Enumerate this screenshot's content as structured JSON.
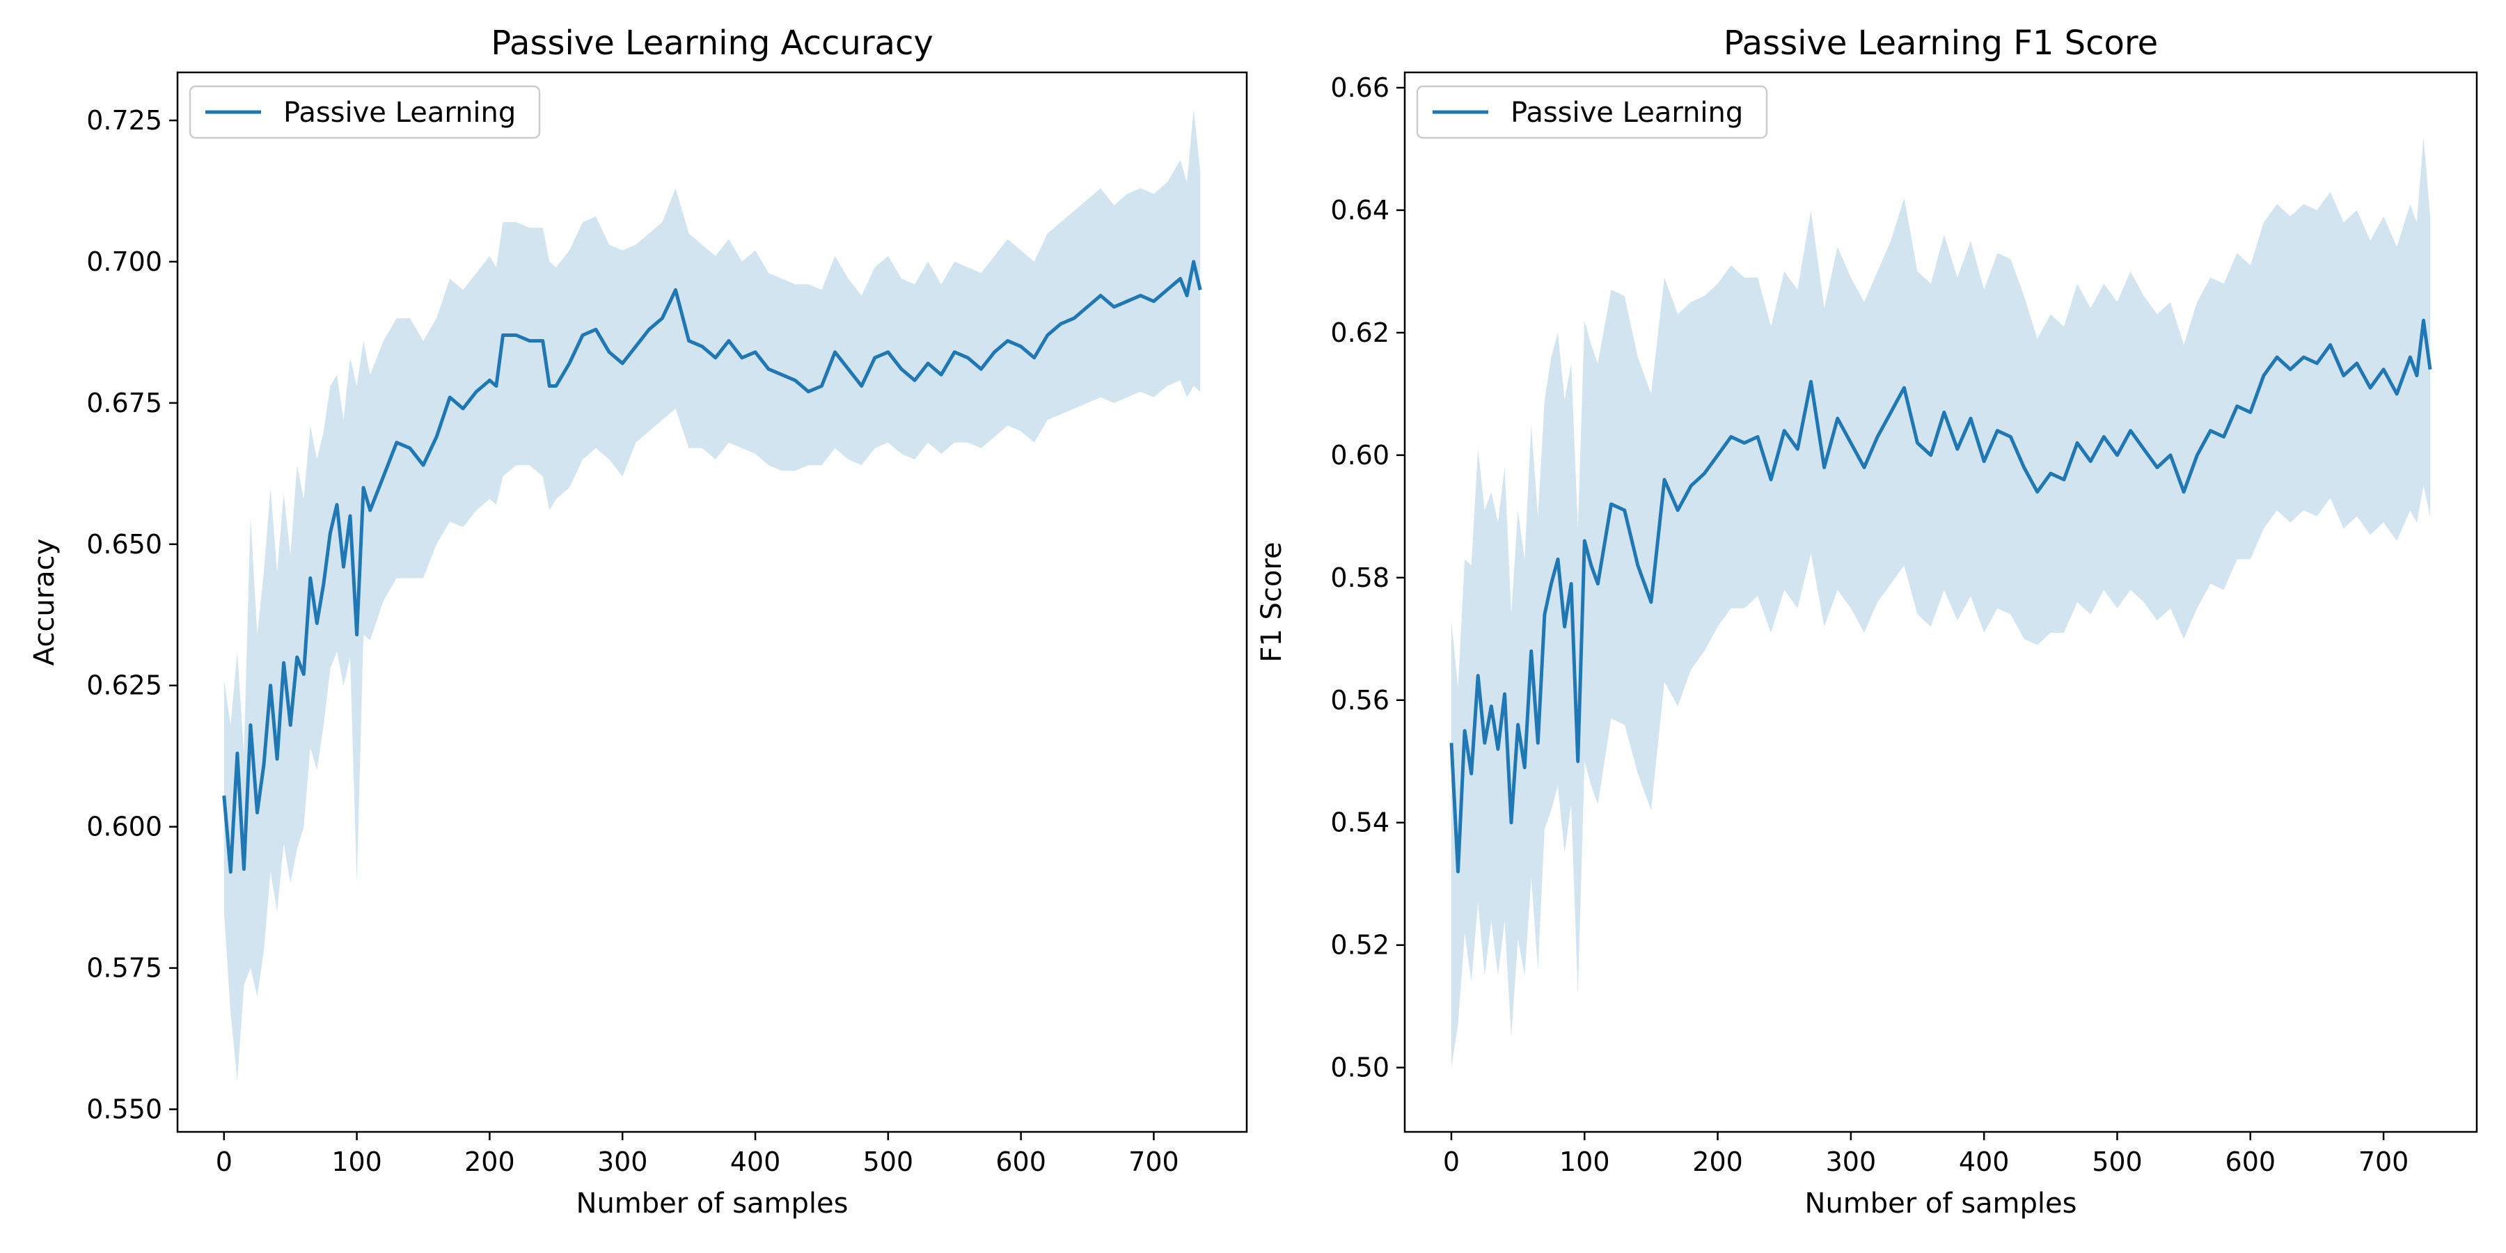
{
  "chart_data": [
    {
      "type": "line",
      "title": "Passive Learning Accuracy",
      "xlabel": "Number of samples",
      "ylabel": "Accuracy",
      "xlim": [
        -35,
        770
      ],
      "ylim": [
        0.546,
        0.7335
      ],
      "xticks": [
        0,
        100,
        200,
        300,
        400,
        500,
        600,
        700
      ],
      "yticks": [
        0.55,
        0.575,
        0.6,
        0.625,
        0.65,
        0.675,
        0.7,
        0.725
      ],
      "ytick_decimals": 3,
      "legend": "upper-left",
      "grid": false,
      "series": [
        {
          "name": "Passive Learning",
          "color": "#1f77b4",
          "band_color": "#1f77b4",
          "band_opacity": 0.2,
          "x": [
            0,
            5,
            10,
            15,
            20,
            25,
            30,
            35,
            40,
            45,
            50,
            55,
            60,
            65,
            70,
            75,
            80,
            85,
            90,
            95,
            100,
            105,
            110,
            120,
            130,
            140,
            150,
            160,
            170,
            180,
            190,
            200,
            205,
            210,
            220,
            230,
            240,
            245,
            250,
            260,
            270,
            280,
            290,
            300,
            310,
            320,
            330,
            340,
            350,
            360,
            370,
            380,
            390,
            400,
            410,
            420,
            430,
            440,
            450,
            460,
            470,
            480,
            490,
            500,
            510,
            520,
            530,
            540,
            550,
            560,
            570,
            580,
            590,
            600,
            610,
            620,
            630,
            640,
            650,
            660,
            670,
            680,
            690,
            700,
            710,
            720,
            725,
            730,
            735
          ],
          "mean": [
            0.6055,
            0.592,
            0.613,
            0.5925,
            0.618,
            0.6025,
            0.611,
            0.625,
            0.612,
            0.629,
            0.618,
            0.63,
            0.627,
            0.644,
            0.636,
            0.643,
            0.652,
            0.657,
            0.646,
            0.655,
            0.634,
            0.66,
            0.656,
            0.662,
            0.668,
            0.667,
            0.664,
            0.669,
            0.676,
            0.674,
            0.677,
            0.679,
            0.678,
            0.687,
            0.687,
            0.686,
            0.686,
            0.678,
            0.678,
            0.682,
            0.687,
            0.688,
            0.684,
            0.682,
            0.685,
            0.688,
            0.69,
            0.695,
            0.686,
            0.685,
            0.683,
            0.686,
            0.683,
            0.684,
            0.681,
            0.68,
            0.679,
            0.677,
            0.678,
            0.684,
            0.681,
            0.678,
            0.683,
            0.684,
            0.681,
            0.679,
            0.682,
            0.68,
            0.684,
            0.683,
            0.681,
            0.684,
            0.686,
            0.685,
            0.683,
            0.687,
            0.689,
            0.69,
            0.692,
            0.694,
            0.692,
            0.693,
            0.694,
            0.693,
            0.695,
            0.697,
            0.694,
            0.7,
            0.695
          ],
          "lower": [
            0.585,
            0.567,
            0.555,
            0.572,
            0.575,
            0.57,
            0.578,
            0.592,
            0.585,
            0.597,
            0.59,
            0.596,
            0.6,
            0.614,
            0.61,
            0.618,
            0.628,
            0.631,
            0.625,
            0.63,
            0.59,
            0.634,
            0.633,
            0.64,
            0.644,
            0.644,
            0.644,
            0.65,
            0.654,
            0.653,
            0.656,
            0.658,
            0.657,
            0.662,
            0.664,
            0.664,
            0.662,
            0.656,
            0.658,
            0.66,
            0.665,
            0.667,
            0.665,
            0.662,
            0.668,
            0.67,
            0.672,
            0.674,
            0.667,
            0.667,
            0.665,
            0.668,
            0.667,
            0.666,
            0.664,
            0.663,
            0.663,
            0.664,
            0.664,
            0.667,
            0.665,
            0.664,
            0.667,
            0.668,
            0.666,
            0.665,
            0.668,
            0.666,
            0.668,
            0.668,
            0.667,
            0.669,
            0.671,
            0.67,
            0.668,
            0.672,
            0.673,
            0.674,
            0.675,
            0.676,
            0.675,
            0.676,
            0.677,
            0.676,
            0.678,
            0.679,
            0.676,
            0.678,
            0.677
          ],
          "upper": [
            0.626,
            0.618,
            0.631,
            0.613,
            0.655,
            0.634,
            0.645,
            0.66,
            0.645,
            0.659,
            0.648,
            0.664,
            0.658,
            0.671,
            0.665,
            0.67,
            0.678,
            0.68,
            0.672,
            0.683,
            0.678,
            0.686,
            0.68,
            0.686,
            0.69,
            0.69,
            0.686,
            0.69,
            0.697,
            0.695,
            0.698,
            0.701,
            0.699,
            0.707,
            0.707,
            0.706,
            0.706,
            0.7,
            0.699,
            0.702,
            0.707,
            0.708,
            0.703,
            0.702,
            0.703,
            0.705,
            0.707,
            0.713,
            0.705,
            0.703,
            0.701,
            0.704,
            0.7,
            0.702,
            0.698,
            0.697,
            0.696,
            0.696,
            0.695,
            0.701,
            0.697,
            0.694,
            0.699,
            0.701,
            0.697,
            0.696,
            0.7,
            0.696,
            0.7,
            0.699,
            0.698,
            0.701,
            0.704,
            0.702,
            0.7,
            0.705,
            0.707,
            0.709,
            0.711,
            0.713,
            0.71,
            0.712,
            0.713,
            0.712,
            0.714,
            0.718,
            0.714,
            0.727,
            0.716
          ]
        }
      ]
    },
    {
      "type": "line",
      "title": "Passive Learning F1 Score",
      "xlabel": "Number of samples",
      "ylabel": "F1 Score",
      "xlim": [
        -35,
        770
      ],
      "ylim": [
        0.4895,
        0.6625
      ],
      "xticks": [
        0,
        100,
        200,
        300,
        400,
        500,
        600,
        700
      ],
      "yticks": [
        0.5,
        0.52,
        0.54,
        0.56,
        0.58,
        0.6,
        0.62,
        0.64,
        0.66
      ],
      "ytick_decimals": 2,
      "legend": "upper-left",
      "grid": false,
      "series": [
        {
          "name": "Passive Learning",
          "color": "#1f77b4",
          "band_color": "#1f77b4",
          "band_opacity": 0.2,
          "x": [
            0,
            5,
            10,
            15,
            20,
            25,
            30,
            35,
            40,
            45,
            50,
            55,
            60,
            65,
            70,
            75,
            80,
            85,
            90,
            95,
            100,
            105,
            110,
            120,
            130,
            140,
            150,
            160,
            170,
            180,
            190,
            200,
            210,
            220,
            230,
            240,
            250,
            260,
            270,
            280,
            290,
            300,
            310,
            320,
            330,
            340,
            350,
            360,
            370,
            380,
            390,
            400,
            410,
            420,
            430,
            440,
            450,
            460,
            470,
            480,
            490,
            500,
            510,
            520,
            530,
            540,
            550,
            560,
            570,
            580,
            590,
            600,
            610,
            620,
            630,
            640,
            650,
            660,
            670,
            680,
            690,
            700,
            710,
            720,
            725,
            730,
            735
          ],
          "mean": [
            0.553,
            0.532,
            0.555,
            0.548,
            0.564,
            0.553,
            0.559,
            0.552,
            0.561,
            0.54,
            0.556,
            0.549,
            0.568,
            0.553,
            0.574,
            0.579,
            0.583,
            0.572,
            0.579,
            0.55,
            0.586,
            0.582,
            0.579,
            0.592,
            0.591,
            0.582,
            0.576,
            0.596,
            0.591,
            0.595,
            0.597,
            0.6,
            0.603,
            0.602,
            0.603,
            0.596,
            0.604,
            0.601,
            0.612,
            0.598,
            0.606,
            0.602,
            0.598,
            0.603,
            0.607,
            0.611,
            0.602,
            0.6,
            0.607,
            0.601,
            0.606,
            0.599,
            0.604,
            0.603,
            0.598,
            0.594,
            0.597,
            0.596,
            0.602,
            0.599,
            0.603,
            0.6,
            0.604,
            0.601,
            0.598,
            0.6,
            0.594,
            0.6,
            0.604,
            0.603,
            0.608,
            0.607,
            0.613,
            0.616,
            0.614,
            0.616,
            0.615,
            0.618,
            0.613,
            0.615,
            0.611,
            0.614,
            0.61,
            0.616,
            0.613,
            0.622,
            0.614
          ],
          "lower": [
            0.5,
            0.507,
            0.522,
            0.514,
            0.527,
            0.515,
            0.524,
            0.515,
            0.524,
            0.505,
            0.521,
            0.515,
            0.531,
            0.516,
            0.539,
            0.542,
            0.546,
            0.535,
            0.543,
            0.512,
            0.55,
            0.546,
            0.543,
            0.557,
            0.556,
            0.548,
            0.542,
            0.563,
            0.559,
            0.565,
            0.568,
            0.572,
            0.575,
            0.575,
            0.577,
            0.571,
            0.578,
            0.575,
            0.584,
            0.572,
            0.578,
            0.575,
            0.571,
            0.576,
            0.579,
            0.582,
            0.574,
            0.572,
            0.578,
            0.573,
            0.577,
            0.571,
            0.575,
            0.574,
            0.57,
            0.569,
            0.571,
            0.571,
            0.576,
            0.574,
            0.578,
            0.575,
            0.578,
            0.576,
            0.573,
            0.575,
            0.57,
            0.575,
            0.579,
            0.578,
            0.583,
            0.583,
            0.588,
            0.591,
            0.589,
            0.591,
            0.59,
            0.593,
            0.588,
            0.59,
            0.587,
            0.589,
            0.586,
            0.591,
            0.589,
            0.595,
            0.59
          ],
          "upper": [
            0.573,
            0.562,
            0.583,
            0.582,
            0.601,
            0.591,
            0.594,
            0.589,
            0.598,
            0.574,
            0.591,
            0.583,
            0.605,
            0.59,
            0.609,
            0.616,
            0.62,
            0.609,
            0.615,
            0.588,
            0.622,
            0.618,
            0.615,
            0.627,
            0.626,
            0.616,
            0.61,
            0.629,
            0.623,
            0.625,
            0.626,
            0.628,
            0.631,
            0.629,
            0.629,
            0.621,
            0.63,
            0.627,
            0.64,
            0.624,
            0.634,
            0.629,
            0.625,
            0.63,
            0.635,
            0.642,
            0.63,
            0.628,
            0.636,
            0.629,
            0.635,
            0.627,
            0.633,
            0.632,
            0.626,
            0.619,
            0.623,
            0.621,
            0.628,
            0.624,
            0.628,
            0.625,
            0.63,
            0.626,
            0.623,
            0.625,
            0.618,
            0.625,
            0.629,
            0.628,
            0.633,
            0.631,
            0.638,
            0.641,
            0.639,
            0.641,
            0.64,
            0.643,
            0.638,
            0.64,
            0.635,
            0.639,
            0.634,
            0.641,
            0.638,
            0.652,
            0.639
          ]
        }
      ]
    }
  ]
}
